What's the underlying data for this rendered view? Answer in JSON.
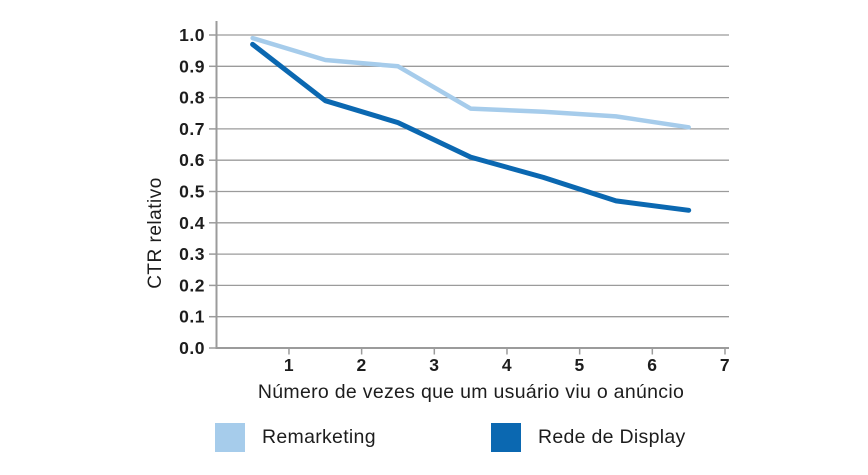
{
  "chart_data": {
    "type": "line",
    "title": "",
    "xlabel": "Número de vezes que um usuário viu o anúncio",
    "ylabel": "CTR relativo",
    "x_tick_labels": [
      "1",
      "2",
      "3",
      "4",
      "5",
      "6",
      "7"
    ],
    "y_tick_labels": [
      "0.0",
      "0.1",
      "0.2",
      "0.3",
      "0.4",
      "0.5",
      "0.6",
      "0.7",
      "0.8",
      "0.9",
      "1.0"
    ],
    "xlim": [
      0,
      7.05
    ],
    "ylim": [
      0.0,
      1.0
    ],
    "grid": "horizontal",
    "legend_position": "bottom",
    "x_positions": [
      0.5,
      1.5,
      2.5,
      3.5,
      4.5,
      5.5,
      6.5
    ],
    "series": [
      {
        "name": "Remarketing",
        "color": "#a6cceb",
        "values": [
          0.99,
          0.92,
          0.9,
          0.765,
          0.755,
          0.74,
          0.705
        ]
      },
      {
        "name": "Rede de Display",
        "color": "#0b68b1",
        "values": [
          0.97,
          0.79,
          0.72,
          0.61,
          0.545,
          0.47,
          0.44
        ]
      }
    ]
  },
  "colors": {
    "grid": "#9b9b9b",
    "axis": "#9b9b9b",
    "text": "#1d1d1d",
    "background": "#ffffff"
  }
}
